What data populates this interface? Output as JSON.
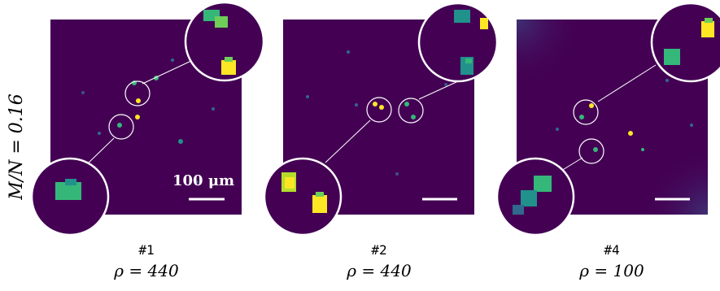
{
  "ylabel": "M/N = 0.16",
  "scale_bar_label": "100 μm",
  "panels": [
    {
      "id": "#1",
      "rho": "ρ = 440"
    },
    {
      "id": "#2",
      "rho": "ρ = 440"
    },
    {
      "id": "#4",
      "rho": "ρ = 100"
    }
  ],
  "colors": {
    "background": "#440154",
    "blob_teal": "#35b779",
    "blob_green": "#6ece58",
    "blob_yellow": "#fde725",
    "blob_blue": "#31688e",
    "ring": "#ffffff"
  }
}
